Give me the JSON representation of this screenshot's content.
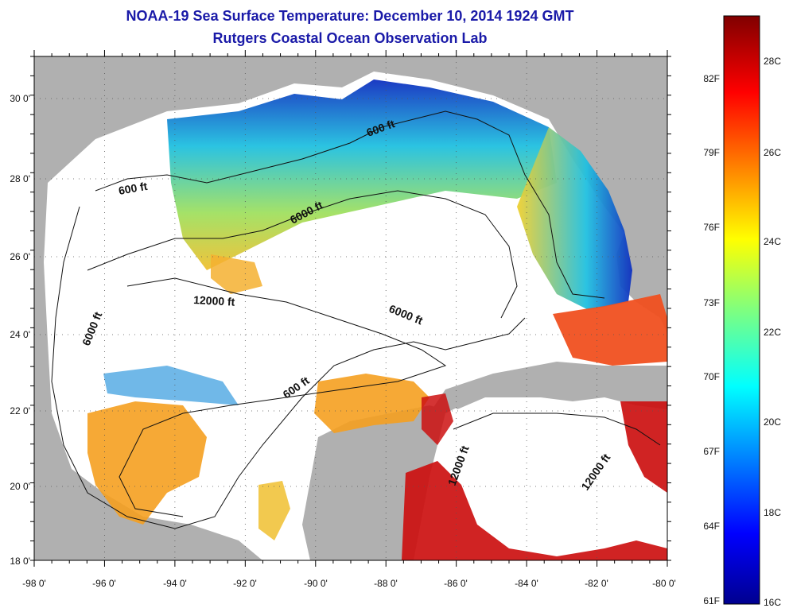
{
  "title": "NOAA-19 Sea Surface Temperature:  December 10, 2014 1924 GMT",
  "subtitle": "Rutgers Coastal Ocean Observation Lab",
  "map": {
    "lon_ticks": [
      "-98 0'",
      "-96 0'",
      "-94 0'",
      "-92 0'",
      "-90 0'",
      "-88 0'",
      "-86 0'",
      "-84 0'",
      "-82 0'",
      "-80 0'"
    ],
    "lat_ticks": [
      "30 0'",
      "28 0'",
      "26 0'",
      "24 0'",
      "22 0'",
      "20 0'",
      "18 0'"
    ],
    "contour_labels": [
      "600 ft",
      "600 ft",
      "6000 ft",
      "12000 ft",
      "6000 ft",
      "6000 ft",
      "600 ft",
      "12000 ft",
      "12000 ft"
    ],
    "colors": {
      "land": "#b0b0b0",
      "ocean_nodata": "#ffffff",
      "warm": "#cc1010",
      "orange": "#f5a020",
      "cold": "#1a2aa0"
    }
  },
  "colorbar": {
    "fahrenheit": [
      "82F",
      "79F",
      "76F",
      "73F",
      "70F",
      "67F",
      "64F",
      "61F"
    ],
    "celsius": [
      "28C",
      "26C",
      "24C",
      "22C",
      "20C",
      "18C",
      "16C"
    ]
  }
}
